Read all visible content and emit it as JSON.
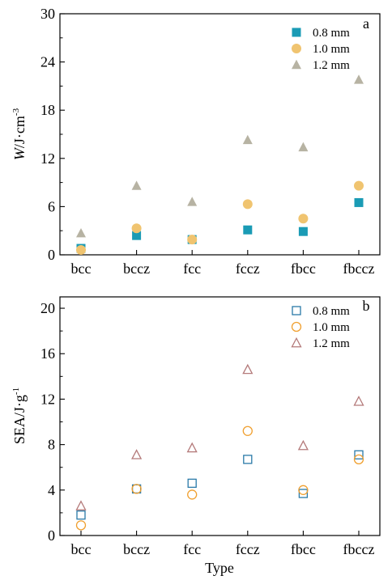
{
  "chart_data": [
    {
      "type": "scatter",
      "panel_label": "a",
      "categories": [
        "bcc",
        "bccz",
        "fcc",
        "fccz",
        "fbcc",
        "fbccz"
      ],
      "ylabel_italic": "W",
      "ylabel_rest": "/J·cm",
      "ylabel_sup": "-3",
      "xlabel": "",
      "ylim": [
        0,
        30
      ],
      "yticks": [
        "0",
        "6",
        "12",
        "18",
        "24",
        "30"
      ],
      "marker_style": "filled",
      "legend_position": "top-right",
      "series": [
        {
          "name": "0.8 mm",
          "marker": "square",
          "color": "#1a9bb5",
          "values": [
            0.8,
            2.4,
            1.9,
            3.1,
            2.9,
            6.5
          ]
        },
        {
          "name": "1.0 mm",
          "marker": "circle",
          "color": "#f0c470",
          "values": [
            0.6,
            3.3,
            1.9,
            6.3,
            4.5,
            8.6
          ]
        },
        {
          "name": "1.2 mm",
          "marker": "triangle",
          "color": "#b7b3a3",
          "values": [
            2.7,
            8.6,
            6.6,
            14.3,
            13.4,
            21.8
          ]
        }
      ]
    },
    {
      "type": "scatter",
      "panel_label": "b",
      "categories": [
        "bcc",
        "bccz",
        "fcc",
        "fccz",
        "fbcc",
        "fbccz"
      ],
      "ylabel_italic": "",
      "ylabel_rest": "SEA/J·g",
      "ylabel_sup": "-1",
      "xlabel": "Type",
      "ylim": [
        0,
        21
      ],
      "yticks": [
        "0",
        "4",
        "8",
        "12",
        "16",
        "20"
      ],
      "marker_style": "hollow",
      "legend_position": "top-right",
      "series": [
        {
          "name": "0.8 mm",
          "marker": "square",
          "color": "#2a7aa8",
          "values": [
            1.8,
            4.1,
            4.6,
            6.7,
            3.7,
            7.1
          ]
        },
        {
          "name": "1.0 mm",
          "marker": "circle",
          "color": "#f0a030",
          "values": [
            0.9,
            4.1,
            3.6,
            9.2,
            4.0,
            6.7
          ]
        },
        {
          "name": "1.2 mm",
          "marker": "triangle",
          "color": "#b47a7a",
          "values": [
            2.6,
            7.1,
            7.7,
            14.6,
            7.9,
            11.8
          ]
        }
      ]
    }
  ]
}
